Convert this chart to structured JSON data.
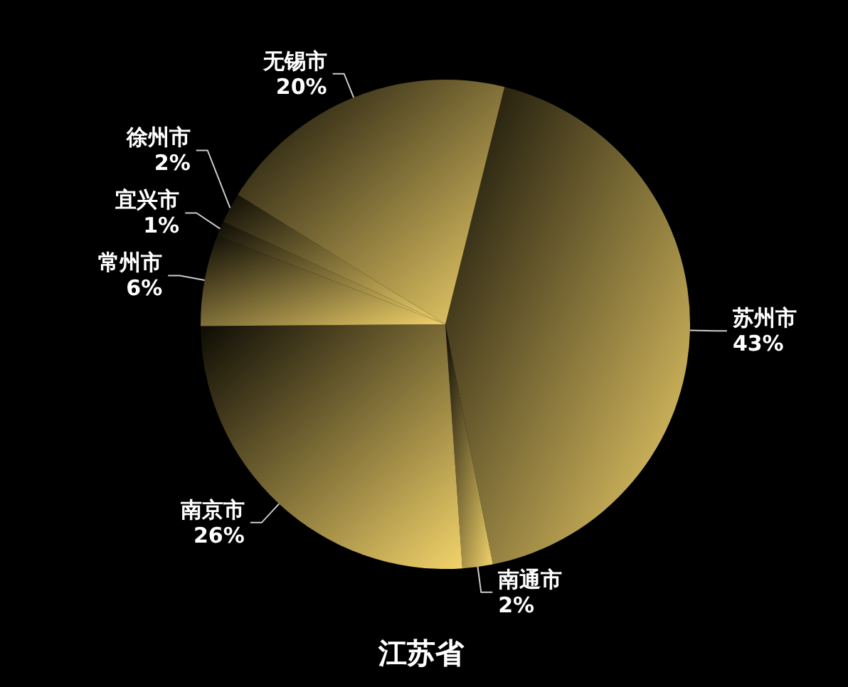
{
  "chart_data": {
    "type": "pie",
    "title": "江苏省",
    "categories": [
      "苏州市",
      "南通市",
      "南京市",
      "常州市",
      "宜兴市",
      "徐州市",
      "无锡市"
    ],
    "values": [
      43,
      2,
      26,
      6,
      1,
      2,
      20
    ],
    "value_labels": [
      "43%",
      "2%",
      "26%",
      "6%",
      "1%",
      "2%",
      "20%"
    ],
    "colors": [
      "#f2d36b",
      "#f2d36b",
      "#f2d36b",
      "#f2d36b",
      "#f2d36b",
      "#f2d36b",
      "#f2d36b"
    ]
  }
}
